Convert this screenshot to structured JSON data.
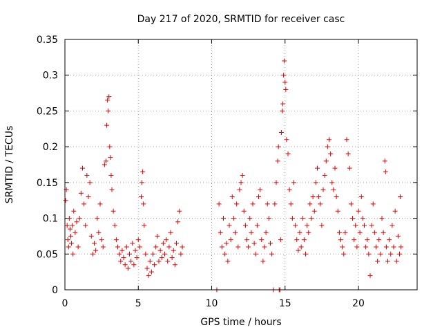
{
  "chart_data": {
    "type": "scatter",
    "title": "Day 217 of 2020, SRMTID for receiver casc",
    "xlabel": "GPS time / hours",
    "ylabel": "SRMTID / TECUs",
    "xlim": [
      0,
      24
    ],
    "ylim": [
      0,
      0.35
    ],
    "x_ticks": [
      0,
      5,
      10,
      15,
      20
    ],
    "x_tick_labels": [
      "0",
      "5",
      "10",
      "15",
      "20"
    ],
    "y_ticks": [
      0,
      0.05,
      0.1,
      0.15,
      0.2,
      0.25,
      0.3,
      0.35
    ],
    "y_tick_labels": [
      "0",
      "0.05",
      "0.1",
      "0.15",
      "0.2",
      "0.25",
      "0.3",
      "0.35"
    ],
    "grid": true,
    "marker": "+",
    "color": "#e00000",
    "series": [
      {
        "name": "SRMTID",
        "points": [
          [
            0.05,
            0.125
          ],
          [
            0.1,
            0.14
          ],
          [
            0.15,
            0.09
          ],
          [
            0.2,
            0.07
          ],
          [
            0.25,
            0.06
          ],
          [
            0.3,
            0.1
          ],
          [
            0.35,
            0.085
          ],
          [
            0.4,
            0.075
          ],
          [
            0.45,
            0.065
          ],
          [
            0.5,
            0.09
          ],
          [
            0.55,
            0.05
          ],
          [
            0.6,
            0.11
          ],
          [
            0.7,
            0.08
          ],
          [
            0.8,
            0.095
          ],
          [
            0.9,
            0.06
          ],
          [
            1.0,
            0.1
          ],
          [
            1.1,
            0.135
          ],
          [
            1.2,
            0.17
          ],
          [
            1.3,
            0.12
          ],
          [
            1.4,
            0.09
          ],
          [
            1.5,
            0.16
          ],
          [
            1.6,
            0.13
          ],
          [
            1.7,
            0.15
          ],
          [
            1.8,
            0.075
          ],
          [
            1.9,
            0.05
          ],
          [
            2.0,
            0.065
          ],
          [
            2.1,
            0.055
          ],
          [
            2.2,
            0.1
          ],
          [
            2.3,
            0.08
          ],
          [
            2.4,
            0.12
          ],
          [
            2.5,
            0.07
          ],
          [
            2.6,
            0.06
          ],
          [
            2.7,
            0.175
          ],
          [
            2.8,
            0.18
          ],
          [
            2.85,
            0.23
          ],
          [
            2.9,
            0.265
          ],
          [
            2.95,
            0.25
          ],
          [
            3.0,
            0.27
          ],
          [
            3.05,
            0.2
          ],
          [
            3.1,
            0.185
          ],
          [
            3.15,
            0.16
          ],
          [
            3.2,
            0.14
          ],
          [
            3.3,
            0.11
          ],
          [
            3.4,
            0.09
          ],
          [
            3.5,
            0.07
          ],
          [
            3.6,
            0.06
          ],
          [
            3.7,
            0.05
          ],
          [
            3.8,
            0.04
          ],
          [
            3.9,
            0.055
          ],
          [
            4.0,
            0.045
          ],
          [
            4.1,
            0.035
          ],
          [
            4.2,
            0.06
          ],
          [
            4.3,
            0.03
          ],
          [
            4.4,
            0.05
          ],
          [
            4.5,
            0.04
          ],
          [
            4.6,
            0.065
          ],
          [
            4.7,
            0.035
          ],
          [
            4.8,
            0.055
          ],
          [
            4.9,
            0.045
          ],
          [
            5.0,
            0.07
          ],
          [
            5.1,
            0.06
          ],
          [
            5.2,
            0.13
          ],
          [
            5.25,
            0.15
          ],
          [
            5.3,
            0.165
          ],
          [
            5.35,
            0.12
          ],
          [
            5.4,
            0.09
          ],
          [
            5.5,
            0.05
          ],
          [
            5.6,
            0.03
          ],
          [
            5.7,
            0.02
          ],
          [
            5.8,
            0.04
          ],
          [
            5.9,
            0.025
          ],
          [
            6.0,
            0.05
          ],
          [
            6.1,
            0.035
          ],
          [
            6.2,
            0.06
          ],
          [
            6.3,
            0.075
          ],
          [
            6.4,
            0.04
          ],
          [
            6.5,
            0.055
          ],
          [
            6.6,
            0.045
          ],
          [
            6.7,
            0.065
          ],
          [
            6.8,
            0.05
          ],
          [
            6.9,
            0.07
          ],
          [
            7.0,
            0.04
          ],
          [
            7.1,
            0.06
          ],
          [
            7.2,
            0.08
          ],
          [
            7.3,
            0.045
          ],
          [
            7.4,
            0.055
          ],
          [
            7.5,
            0.035
          ],
          [
            7.6,
            0.065
          ],
          [
            7.7,
            0.095
          ],
          [
            7.8,
            0.11
          ],
          [
            7.9,
            0.05
          ],
          [
            8.0,
            0.06
          ],
          [
            10.35,
            0.0
          ],
          [
            10.5,
            0.12
          ],
          [
            10.6,
            0.08
          ],
          [
            10.7,
            0.06
          ],
          [
            10.8,
            0.1
          ],
          [
            10.9,
            0.05
          ],
          [
            11.0,
            0.065
          ],
          [
            11.1,
            0.04
          ],
          [
            11.2,
            0.09
          ],
          [
            11.3,
            0.07
          ],
          [
            11.4,
            0.13
          ],
          [
            11.5,
            0.1
          ],
          [
            11.6,
            0.08
          ],
          [
            11.7,
            0.12
          ],
          [
            11.8,
            0.06
          ],
          [
            11.9,
            0.14
          ],
          [
            12.0,
            0.15
          ],
          [
            12.1,
            0.16
          ],
          [
            12.2,
            0.11
          ],
          [
            12.3,
            0.09
          ],
          [
            12.4,
            0.07
          ],
          [
            12.5,
            0.06
          ],
          [
            12.6,
            0.1
          ],
          [
            12.7,
            0.08
          ],
          [
            12.8,
            0.12
          ],
          [
            12.9,
            0.065
          ],
          [
            13.0,
            0.05
          ],
          [
            13.1,
            0.09
          ],
          [
            13.2,
            0.13
          ],
          [
            13.3,
            0.14
          ],
          [
            13.4,
            0.07
          ],
          [
            13.5,
            0.04
          ],
          [
            13.6,
            0.06
          ],
          [
            13.7,
            0.08
          ],
          [
            13.8,
            0.12
          ],
          [
            13.9,
            0.1
          ],
          [
            14.0,
            0.065
          ],
          [
            14.1,
            0.05
          ],
          [
            14.2,
            0.0
          ],
          [
            14.3,
            0.12
          ],
          [
            14.4,
            0.15
          ],
          [
            14.5,
            0.18
          ],
          [
            14.55,
            0.2
          ],
          [
            14.6,
            0.0
          ],
          [
            14.65,
            0.0
          ],
          [
            14.7,
            0.07
          ],
          [
            14.75,
            0.22
          ],
          [
            14.8,
            0.25
          ],
          [
            14.85,
            0.26
          ],
          [
            14.9,
            0.3
          ],
          [
            14.95,
            0.32
          ],
          [
            15.0,
            0.29
          ],
          [
            15.05,
            0.28
          ],
          [
            15.1,
            0.21
          ],
          [
            15.2,
            0.19
          ],
          [
            15.3,
            0.14
          ],
          [
            15.4,
            0.12
          ],
          [
            15.5,
            0.1
          ],
          [
            15.6,
            0.15
          ],
          [
            15.7,
            0.09
          ],
          [
            15.8,
            0.07
          ],
          [
            15.9,
            0.055
          ],
          [
            16.0,
            0.08
          ],
          [
            16.1,
            0.06
          ],
          [
            16.2,
            0.1
          ],
          [
            16.3,
            0.07
          ],
          [
            16.4,
            0.05
          ],
          [
            16.5,
            0.09
          ],
          [
            16.6,
            0.08
          ],
          [
            16.7,
            0.12
          ],
          [
            16.8,
            0.1
          ],
          [
            16.9,
            0.13
          ],
          [
            17.0,
            0.11
          ],
          [
            17.1,
            0.15
          ],
          [
            17.2,
            0.17
          ],
          [
            17.3,
            0.13
          ],
          [
            17.4,
            0.12
          ],
          [
            17.5,
            0.09
          ],
          [
            17.6,
            0.14
          ],
          [
            17.7,
            0.16
          ],
          [
            17.8,
            0.18
          ],
          [
            17.9,
            0.2
          ],
          [
            18.0,
            0.21
          ],
          [
            18.1,
            0.19
          ],
          [
            18.2,
            0.15
          ],
          [
            18.3,
            0.14
          ],
          [
            18.4,
            0.17
          ],
          [
            18.5,
            0.13
          ],
          [
            18.6,
            0.11
          ],
          [
            18.7,
            0.08
          ],
          [
            18.8,
            0.07
          ],
          [
            18.9,
            0.06
          ],
          [
            19.0,
            0.05
          ],
          [
            19.1,
            0.08
          ],
          [
            19.2,
            0.21
          ],
          [
            19.3,
            0.19
          ],
          [
            19.4,
            0.17
          ],
          [
            19.5,
            0.12
          ],
          [
            19.6,
            0.1
          ],
          [
            19.7,
            0.07
          ],
          [
            19.8,
            0.09
          ],
          [
            19.9,
            0.06
          ],
          [
            20.0,
            0.11
          ],
          [
            20.1,
            0.08
          ],
          [
            20.2,
            0.13
          ],
          [
            20.3,
            0.1
          ],
          [
            20.4,
            0.09
          ],
          [
            20.5,
            0.06
          ],
          [
            20.6,
            0.07
          ],
          [
            20.7,
            0.05
          ],
          [
            20.8,
            0.02
          ],
          [
            20.9,
            0.09
          ],
          [
            21.0,
            0.12
          ],
          [
            21.1,
            0.08
          ],
          [
            21.2,
            0.06
          ],
          [
            21.3,
            0.04
          ],
          [
            21.4,
            0.07
          ],
          [
            21.5,
            0.05
          ],
          [
            21.6,
            0.1
          ],
          [
            21.7,
            0.08
          ],
          [
            21.8,
            0.18
          ],
          [
            21.85,
            0.165
          ],
          [
            21.9,
            0.06
          ],
          [
            22.0,
            0.04
          ],
          [
            22.1,
            0.07
          ],
          [
            22.2,
            0.05
          ],
          [
            22.3,
            0.09
          ],
          [
            22.4,
            0.06
          ],
          [
            22.5,
            0.11
          ],
          [
            22.6,
            0.04
          ],
          [
            22.7,
            0.075
          ],
          [
            22.8,
            0.05
          ],
          [
            22.85,
            0.13
          ],
          [
            22.9,
            0.06
          ]
        ]
      }
    ]
  }
}
